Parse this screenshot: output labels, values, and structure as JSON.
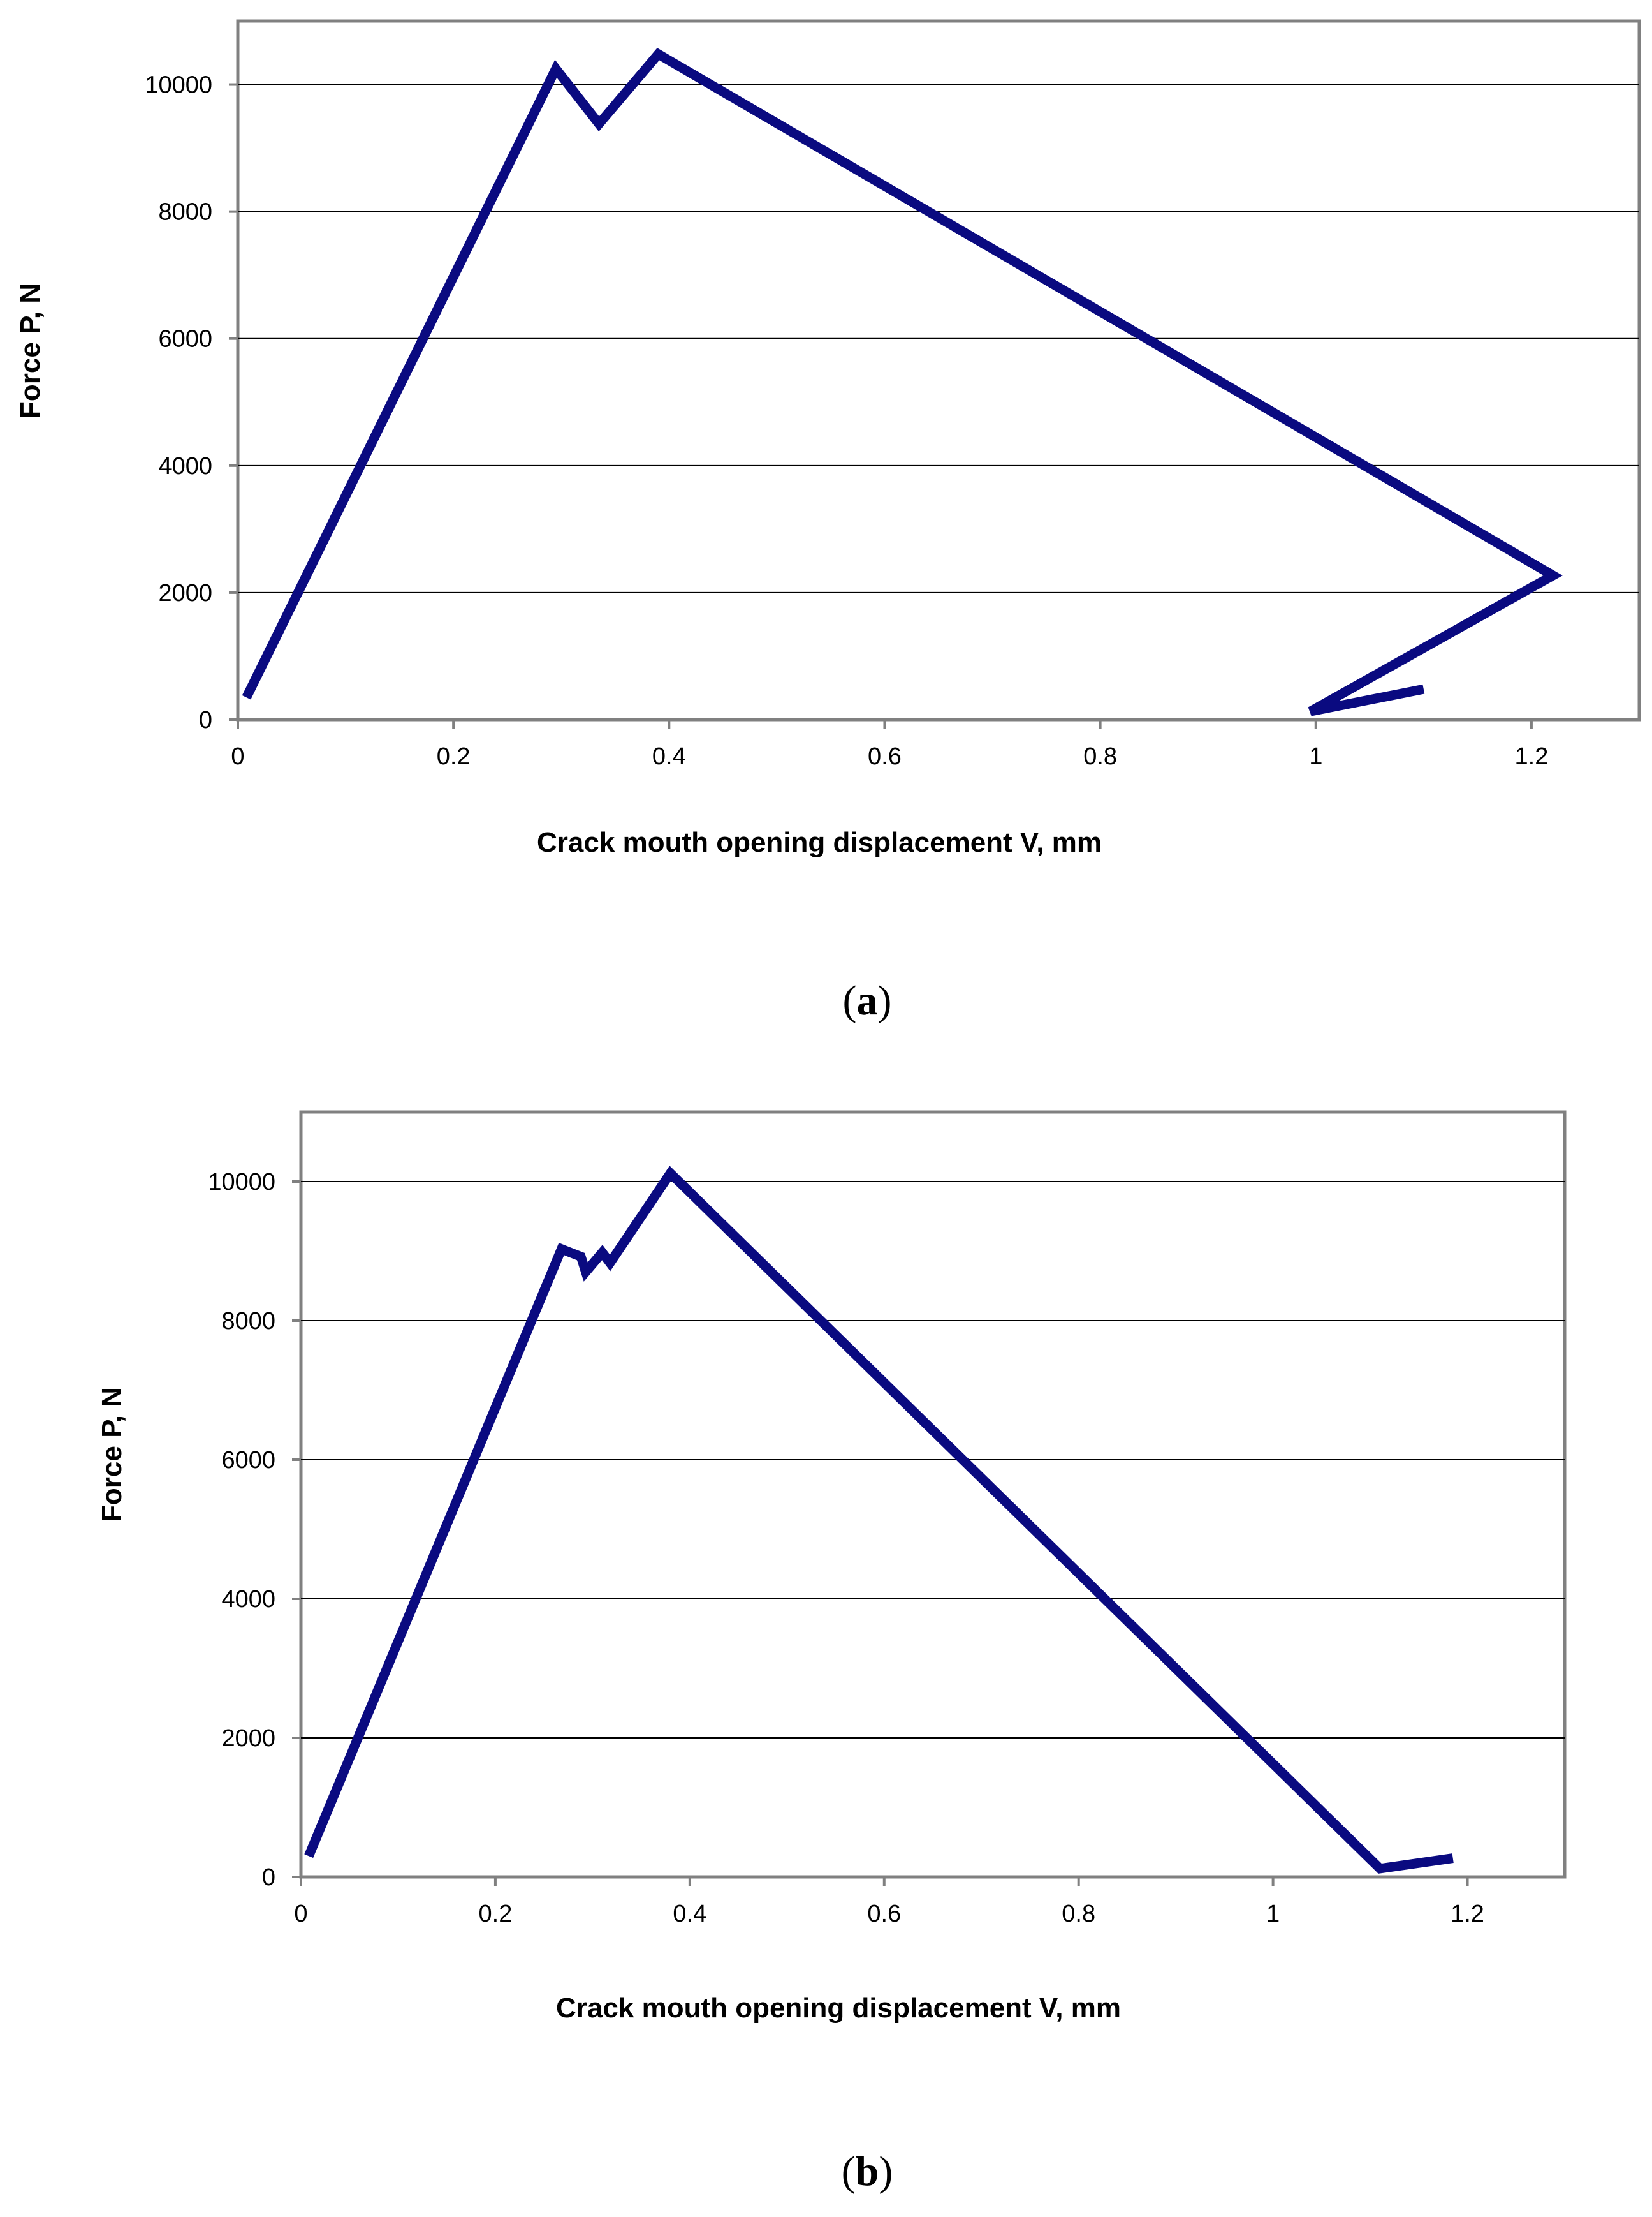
{
  "chart_data": [
    {
      "type": "line",
      "panel": "a",
      "xlabel": "Crack mouth opening displacement V,  mm",
      "ylabel": "Force P,  N",
      "xlim": [
        0,
        1.3
      ],
      "ylim": [
        0,
        11000
      ],
      "xticks": [
        "0",
        "0.2",
        "0.4",
        "0.6",
        "0.8",
        "1",
        "1.2"
      ],
      "xtick_values": [
        0,
        0.2,
        0.4,
        0.6,
        0.8,
        1.0,
        1.2
      ],
      "yticks": [
        "0",
        "2000",
        "4000",
        "6000",
        "8000",
        "10000"
      ],
      "ytick_values": [
        0,
        2000,
        4000,
        6000,
        8000,
        10000
      ],
      "grid": "horizontal",
      "color": "#0a0a80",
      "x": [
        0.008,
        0.295,
        0.335,
        0.39,
        1.22,
        0.995,
        1.1
      ],
      "y": [
        350,
        10250,
        9380,
        10480,
        2270,
        130,
        480
      ]
    },
    {
      "type": "line",
      "panel": "b",
      "xlabel": "Crack mouth opening displacement V,  mm",
      "ylabel": "Force P,  N",
      "xlim": [
        0,
        1.3
      ],
      "ylim": [
        0,
        11000
      ],
      "xticks": [
        "0",
        "0.2",
        "0.4",
        "0.6",
        "0.8",
        "1",
        "1.2"
      ],
      "xtick_values": [
        0,
        0.2,
        0.4,
        0.6,
        0.8,
        1.0,
        1.2
      ],
      "yticks": [
        "0",
        "2000",
        "4000",
        "6000",
        "8000",
        "10000"
      ],
      "ytick_values": [
        0,
        2000,
        4000,
        6000,
        8000,
        10000
      ],
      "grid": "horizontal",
      "color": "#0a0a80",
      "x": [
        0.008,
        0.268,
        0.288,
        0.293,
        0.31,
        0.318,
        0.38,
        1.11,
        1.185
      ],
      "y": [
        300,
        9030,
        8920,
        8700,
        8980,
        8830,
        10120,
        120,
        270
      ]
    }
  ],
  "panels": [
    {
      "open": "(",
      "letter": "a",
      "close": ")"
    },
    {
      "open": "(",
      "letter": "b",
      "close": ")"
    }
  ]
}
